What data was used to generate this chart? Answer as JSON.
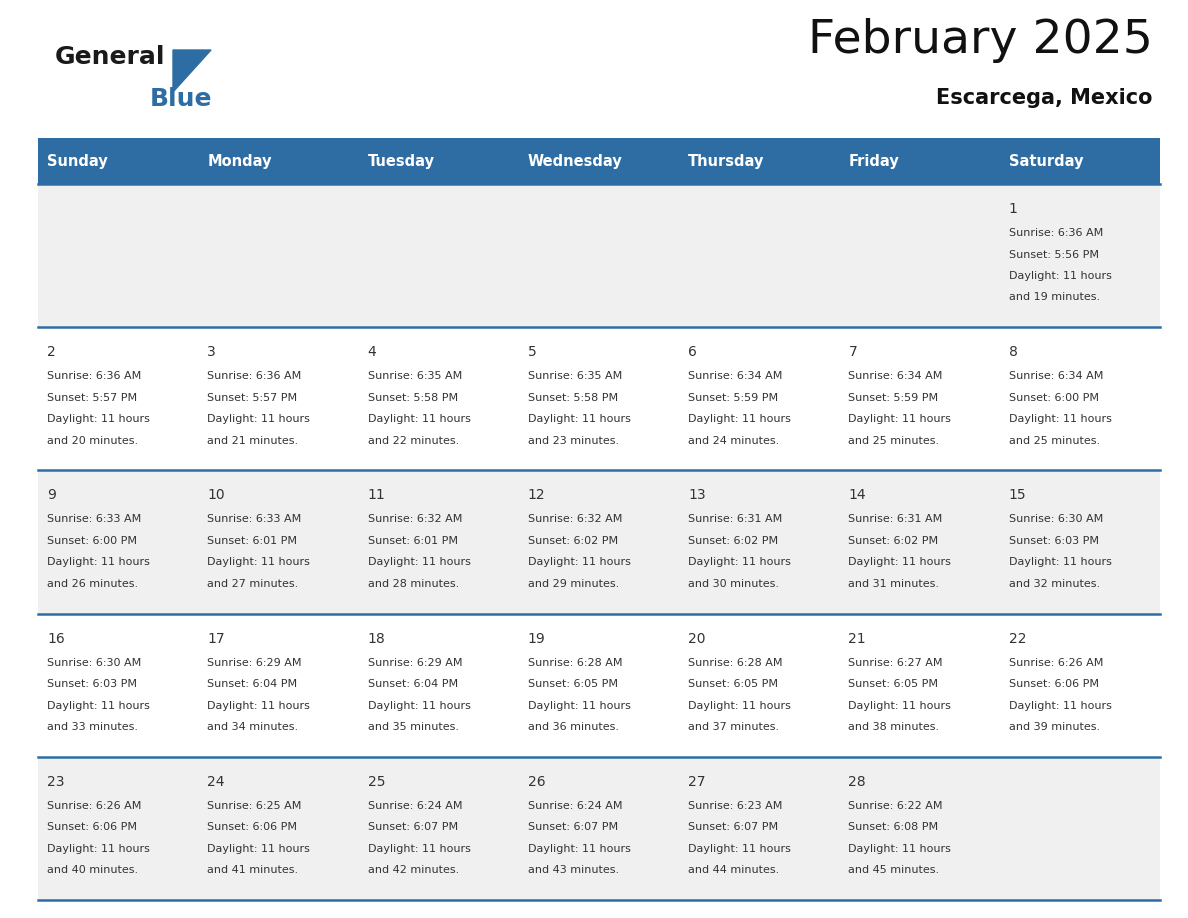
{
  "title": "February 2025",
  "subtitle": "Escarcega, Mexico",
  "header_bg_color": "#2E6DA4",
  "header_text_color": "#FFFFFF",
  "odd_row_bg": "#F0F0F0",
  "even_row_bg": "#FFFFFF",
  "separator_color": "#2E6DA4",
  "text_color": "#333333",
  "day_num_color": "#333333",
  "weekdays": [
    "Sunday",
    "Monday",
    "Tuesday",
    "Wednesday",
    "Thursday",
    "Friday",
    "Saturday"
  ],
  "calendar": [
    [
      null,
      null,
      null,
      null,
      null,
      null,
      {
        "day": 1,
        "sunrise": "6:36 AM",
        "sunset": "5:56 PM",
        "daylight": "11 hours",
        "daylight2": "and 19 minutes."
      }
    ],
    [
      {
        "day": 2,
        "sunrise": "6:36 AM",
        "sunset": "5:57 PM",
        "daylight": "11 hours",
        "daylight2": "and 20 minutes."
      },
      {
        "day": 3,
        "sunrise": "6:36 AM",
        "sunset": "5:57 PM",
        "daylight": "11 hours",
        "daylight2": "and 21 minutes."
      },
      {
        "day": 4,
        "sunrise": "6:35 AM",
        "sunset": "5:58 PM",
        "daylight": "11 hours",
        "daylight2": "and 22 minutes."
      },
      {
        "day": 5,
        "sunrise": "6:35 AM",
        "sunset": "5:58 PM",
        "daylight": "11 hours",
        "daylight2": "and 23 minutes."
      },
      {
        "day": 6,
        "sunrise": "6:34 AM",
        "sunset": "5:59 PM",
        "daylight": "11 hours",
        "daylight2": "and 24 minutes."
      },
      {
        "day": 7,
        "sunrise": "6:34 AM",
        "sunset": "5:59 PM",
        "daylight": "11 hours",
        "daylight2": "and 25 minutes."
      },
      {
        "day": 8,
        "sunrise": "6:34 AM",
        "sunset": "6:00 PM",
        "daylight": "11 hours",
        "daylight2": "and 25 minutes."
      }
    ],
    [
      {
        "day": 9,
        "sunrise": "6:33 AM",
        "sunset": "6:00 PM",
        "daylight": "11 hours",
        "daylight2": "and 26 minutes."
      },
      {
        "day": 10,
        "sunrise": "6:33 AM",
        "sunset": "6:01 PM",
        "daylight": "11 hours",
        "daylight2": "and 27 minutes."
      },
      {
        "day": 11,
        "sunrise": "6:32 AM",
        "sunset": "6:01 PM",
        "daylight": "11 hours",
        "daylight2": "and 28 minutes."
      },
      {
        "day": 12,
        "sunrise": "6:32 AM",
        "sunset": "6:02 PM",
        "daylight": "11 hours",
        "daylight2": "and 29 minutes."
      },
      {
        "day": 13,
        "sunrise": "6:31 AM",
        "sunset": "6:02 PM",
        "daylight": "11 hours",
        "daylight2": "and 30 minutes."
      },
      {
        "day": 14,
        "sunrise": "6:31 AM",
        "sunset": "6:02 PM",
        "daylight": "11 hours",
        "daylight2": "and 31 minutes."
      },
      {
        "day": 15,
        "sunrise": "6:30 AM",
        "sunset": "6:03 PM",
        "daylight": "11 hours",
        "daylight2": "and 32 minutes."
      }
    ],
    [
      {
        "day": 16,
        "sunrise": "6:30 AM",
        "sunset": "6:03 PM",
        "daylight": "11 hours",
        "daylight2": "and 33 minutes."
      },
      {
        "day": 17,
        "sunrise": "6:29 AM",
        "sunset": "6:04 PM",
        "daylight": "11 hours",
        "daylight2": "and 34 minutes."
      },
      {
        "day": 18,
        "sunrise": "6:29 AM",
        "sunset": "6:04 PM",
        "daylight": "11 hours",
        "daylight2": "and 35 minutes."
      },
      {
        "day": 19,
        "sunrise": "6:28 AM",
        "sunset": "6:05 PM",
        "daylight": "11 hours",
        "daylight2": "and 36 minutes."
      },
      {
        "day": 20,
        "sunrise": "6:28 AM",
        "sunset": "6:05 PM",
        "daylight": "11 hours",
        "daylight2": "and 37 minutes."
      },
      {
        "day": 21,
        "sunrise": "6:27 AM",
        "sunset": "6:05 PM",
        "daylight": "11 hours",
        "daylight2": "and 38 minutes."
      },
      {
        "day": 22,
        "sunrise": "6:26 AM",
        "sunset": "6:06 PM",
        "daylight": "11 hours",
        "daylight2": "and 39 minutes."
      }
    ],
    [
      {
        "day": 23,
        "sunrise": "6:26 AM",
        "sunset": "6:06 PM",
        "daylight": "11 hours",
        "daylight2": "and 40 minutes."
      },
      {
        "day": 24,
        "sunrise": "6:25 AM",
        "sunset": "6:06 PM",
        "daylight": "11 hours",
        "daylight2": "and 41 minutes."
      },
      {
        "day": 25,
        "sunrise": "6:24 AM",
        "sunset": "6:07 PM",
        "daylight": "11 hours",
        "daylight2": "and 42 minutes."
      },
      {
        "day": 26,
        "sunrise": "6:24 AM",
        "sunset": "6:07 PM",
        "daylight": "11 hours",
        "daylight2": "and 43 minutes."
      },
      {
        "day": 27,
        "sunrise": "6:23 AM",
        "sunset": "6:07 PM",
        "daylight": "11 hours",
        "daylight2": "and 44 minutes."
      },
      {
        "day": 28,
        "sunrise": "6:22 AM",
        "sunset": "6:08 PM",
        "daylight": "11 hours",
        "daylight2": "and 45 minutes."
      },
      null
    ]
  ],
  "logo_text_general": "General",
  "logo_text_blue": "Blue",
  "logo_color_general": "#1a1a1a",
  "logo_color_blue": "#2E6DA4",
  "fig_width": 11.88,
  "fig_height": 9.18,
  "dpi": 100
}
